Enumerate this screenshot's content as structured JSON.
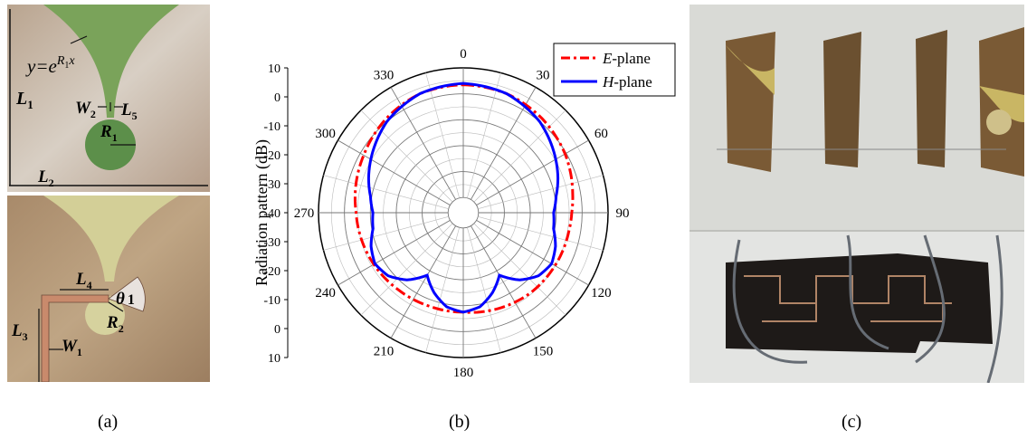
{
  "panel_a": {
    "top_labels": {
      "curve_eq": "y=e",
      "curve_exp": "R",
      "curve_exp_sub": "1",
      "curve_exp_x": "x",
      "L1": "L",
      "L1_sub": "1",
      "W2": "W",
      "W2_sub": "2",
      "L5": "L",
      "L5_sub": "5",
      "R1": "R",
      "R1_sub": "1",
      "L2": "L",
      "L2_sub": "2"
    },
    "bottom_labels": {
      "L4": "L",
      "L4_sub": "4",
      "theta1": "θ",
      "theta1_sub": "1",
      "R2": "R",
      "R2_sub": "2",
      "L3": "L",
      "L3_sub": "3",
      "W1": "W",
      "W1_sub": "1"
    }
  },
  "chart_data": {
    "type": "polar",
    "ylabel": "Radiation pattern (dB)",
    "radial_range": [
      -40,
      10
    ],
    "radial_ticks": [
      "10",
      "0",
      "-10",
      "-20",
      "-30",
      "-40",
      "-30",
      "-20",
      "-10",
      "0",
      "10"
    ],
    "angle_ticks": [
      "0",
      "30",
      "60",
      "90",
      "120",
      "150",
      "180",
      "210",
      "240",
      "270",
      "300",
      "330"
    ],
    "grid": true,
    "legend": "top-right",
    "series": [
      {
        "name": "E-plane",
        "name_prefix": "E",
        "name_suffix": "-plane",
        "color": "#ff0000",
        "style": "dash-dot",
        "angles": [
          0,
          20,
          40,
          60,
          80,
          90,
          100,
          120,
          140,
          160,
          180,
          200,
          220,
          240,
          260,
          270,
          280,
          300,
          320,
          340
        ],
        "values": [
          3.5,
          3.0,
          1.5,
          -0.5,
          -3.0,
          -4.0,
          -4.5,
          -5.0,
          -5.5,
          -6.5,
          -7.5,
          -7.5,
          -7.0,
          -6.0,
          -5.0,
          -4.5,
          -3.5,
          -1.5,
          1.0,
          3.0
        ]
      },
      {
        "name": "H-plane",
        "name_prefix": "H",
        "name_suffix": "-plane",
        "color": "#0000ff",
        "style": "solid",
        "angles": [
          0,
          20,
          40,
          55,
          70,
          80,
          90,
          100,
          110,
          120,
          130,
          140,
          150,
          160,
          170,
          180,
          190,
          200,
          210,
          220,
          230,
          240,
          250,
          260,
          270,
          280,
          290,
          305,
          320,
          340
        ],
        "values": [
          4.0,
          3.0,
          0.0,
          -3.5,
          -7.0,
          -9.5,
          -11.0,
          -10.5,
          -8.0,
          -6.5,
          -8.0,
          -12.0,
          -18.0,
          -13.0,
          -9.0,
          -7.5,
          -9.0,
          -13.0,
          -18.0,
          -12.0,
          -8.0,
          -6.5,
          -8.0,
          -10.5,
          -11.0,
          -9.5,
          -7.0,
          -3.5,
          0.0,
          3.0
        ]
      }
    ]
  },
  "captions": {
    "a": "(a)",
    "b": "(b)",
    "c": "(c)"
  }
}
